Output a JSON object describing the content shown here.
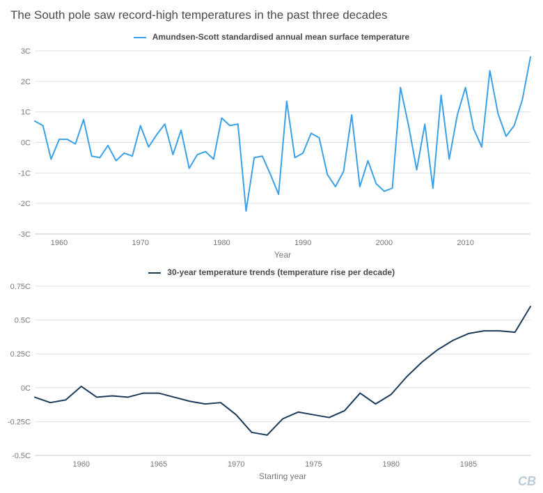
{
  "title": "The South pole saw record-high temperatures in the past three decades",
  "logo": "CB",
  "chart_top": {
    "type": "line",
    "legend_label": "Amundsen-Scott standardised annual mean surface temperature",
    "line_color": "#3aa0e8",
    "line_width": 2,
    "background_color": "#ffffff",
    "grid_color": "#e0e0e0",
    "xlabel": "Year",
    "label_fontsize": 12,
    "xlim": [
      1957,
      2018
    ],
    "ylim": [
      -3,
      3
    ],
    "xticks": [
      1960,
      1970,
      1980,
      1990,
      2000,
      2010
    ],
    "yticks": [
      -3,
      -2,
      -1,
      0,
      1,
      2,
      3
    ],
    "ytick_labels": [
      "-3C",
      "-2C",
      "-1C",
      "0C",
      "1C",
      "2C",
      "3C"
    ],
    "years": [
      1957,
      1958,
      1959,
      1960,
      1961,
      1962,
      1963,
      1964,
      1965,
      1966,
      1967,
      1968,
      1969,
      1970,
      1971,
      1972,
      1973,
      1974,
      1975,
      1976,
      1977,
      1978,
      1979,
      1980,
      1981,
      1982,
      1983,
      1984,
      1985,
      1986,
      1987,
      1988,
      1989,
      1990,
      1991,
      1992,
      1993,
      1994,
      1995,
      1996,
      1997,
      1998,
      1999,
      2000,
      2001,
      2002,
      2003,
      2004,
      2005,
      2006,
      2007,
      2008,
      2009,
      2010,
      2011,
      2012,
      2013,
      2014,
      2015,
      2016,
      2017,
      2018
    ],
    "values": [
      0.7,
      0.55,
      -0.55,
      0.1,
      0.1,
      -0.05,
      0.75,
      -0.45,
      -0.5,
      -0.1,
      -0.6,
      -0.35,
      -0.45,
      0.55,
      -0.15,
      0.25,
      0.6,
      -0.4,
      0.4,
      -0.85,
      -0.4,
      -0.3,
      -0.55,
      0.8,
      0.55,
      0.6,
      -2.25,
      -0.5,
      -0.45,
      -1.05,
      -1.7,
      1.35,
      -0.5,
      -0.35,
      0.3,
      0.15,
      -1.05,
      -1.45,
      -0.95,
      0.9,
      -1.45,
      -0.6,
      -1.35,
      -1.6,
      -1.5,
      1.8,
      0.55,
      -0.9,
      0.6,
      -1.5,
      1.55,
      -0.55,
      0.9,
      1.8,
      0.45,
      -0.15,
      2.35,
      0.95,
      0.2,
      0.55,
      1.4,
      2.8
    ]
  },
  "chart_bottom": {
    "type": "line",
    "legend_label": "30-year temperature trends (temperature rise per decade)",
    "line_color": "#1a3a5c",
    "line_width": 2,
    "background_color": "#ffffff",
    "grid_color": "#e0e0e0",
    "xlabel": "Starting year",
    "label_fontsize": 12,
    "xlim": [
      1957,
      1989
    ],
    "ylim": [
      -0.5,
      0.75
    ],
    "xticks": [
      1960,
      1965,
      1970,
      1975,
      1980,
      1985
    ],
    "yticks": [
      -0.5,
      -0.25,
      0,
      0.25,
      0.5,
      0.75
    ],
    "ytick_labels": [
      "-0.5C",
      "-0.25C",
      "0C",
      "0.25C",
      "0.5C",
      "0.75C"
    ],
    "years": [
      1957,
      1958,
      1959,
      1960,
      1961,
      1962,
      1963,
      1964,
      1965,
      1966,
      1967,
      1968,
      1969,
      1970,
      1971,
      1972,
      1973,
      1974,
      1975,
      1976,
      1977,
      1978,
      1979,
      1980,
      1981,
      1982,
      1983,
      1984,
      1985,
      1986,
      1987,
      1988,
      1989
    ],
    "values": [
      -0.07,
      -0.11,
      -0.09,
      0.01,
      -0.07,
      -0.06,
      -0.07,
      -0.04,
      -0.04,
      -0.07,
      -0.1,
      -0.12,
      -0.11,
      -0.2,
      -0.33,
      -0.35,
      -0.23,
      -0.18,
      -0.2,
      -0.22,
      -0.17,
      -0.04,
      -0.12,
      -0.05,
      0.08,
      0.19,
      0.28,
      0.35,
      0.4,
      0.42,
      0.42,
      0.41,
      0.6
    ]
  }
}
